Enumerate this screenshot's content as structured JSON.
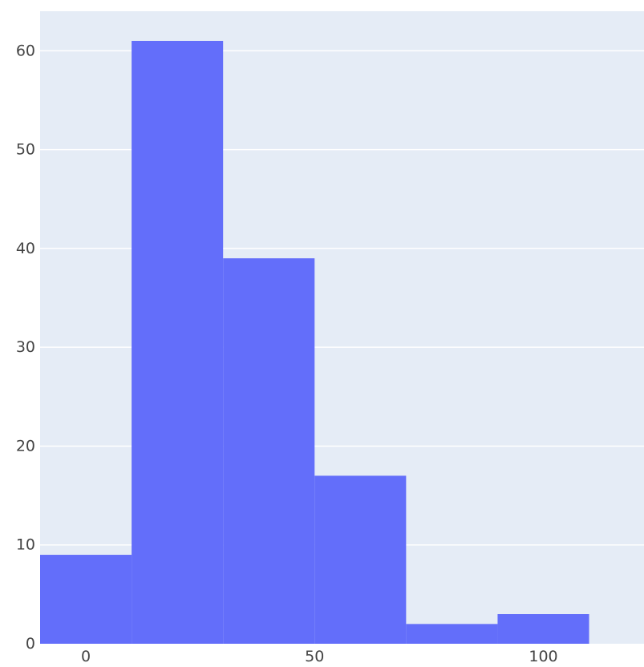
{
  "chart_data": {
    "type": "bar",
    "title": "",
    "xlabel": "",
    "ylabel": "",
    "bins": [
      {
        "x0": -10,
        "x1": 10,
        "value": 9
      },
      {
        "x0": 10,
        "x1": 30,
        "value": 61
      },
      {
        "x0": 30,
        "x1": 50,
        "value": 39
      },
      {
        "x0": 50,
        "x1": 70,
        "value": 17
      },
      {
        "x0": 70,
        "x1": 90,
        "value": 2
      },
      {
        "x0": 90,
        "x1": 110,
        "value": 3
      }
    ],
    "xlim": [
      -10,
      122
    ],
    "ylim": [
      0,
      64
    ],
    "x_ticks": [
      {
        "value": 0,
        "label": "0"
      },
      {
        "value": 50,
        "label": "50"
      },
      {
        "value": 100,
        "label": "100"
      }
    ],
    "y_ticks": [
      {
        "value": 0,
        "label": "0"
      },
      {
        "value": 10,
        "label": "10"
      },
      {
        "value": 20,
        "label": "20"
      },
      {
        "value": 30,
        "label": "30"
      },
      {
        "value": 40,
        "label": "40"
      },
      {
        "value": 50,
        "label": "50"
      },
      {
        "value": 60,
        "label": "60"
      }
    ],
    "grid": true,
    "colors": {
      "bar": "#636efa",
      "plot_background": "#e5ecf6",
      "gridline": "#ffffff",
      "tick_text": "#444444"
    }
  }
}
